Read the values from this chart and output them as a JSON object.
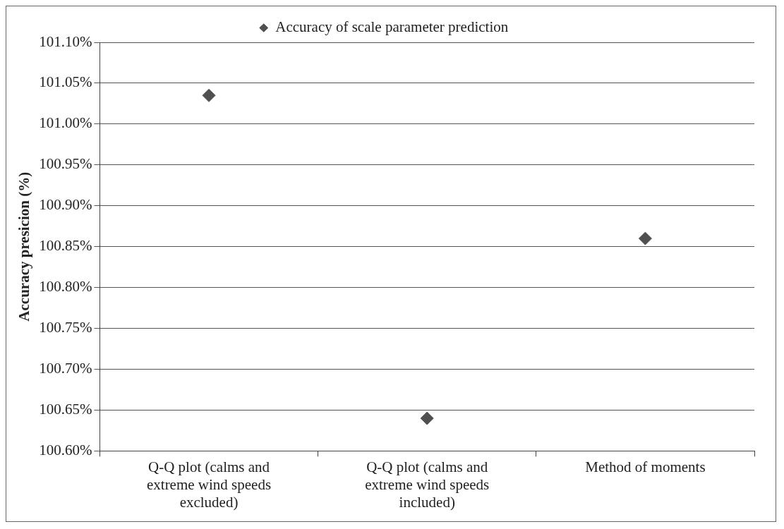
{
  "chart_data": {
    "type": "scatter",
    "ylabel": "Accuracy presicion (%)",
    "categories": [
      "Q-Q plot (calms and extreme wind speeds excluded)",
      "Q-Q plot (calms and extreme wind speeds included)",
      "Method of moments"
    ],
    "series": [
      {
        "name": "Accuracy of scale parameter prediction",
        "color": "#505050",
        "values": [
          101.035,
          100.64,
          100.86
        ]
      }
    ],
    "ylim": [
      100.6,
      101.1
    ],
    "yticks": [
      {
        "value": 100.6,
        "label": "100.60%"
      },
      {
        "value": 100.65,
        "label": "100.65%"
      },
      {
        "value": 100.7,
        "label": "100.70%"
      },
      {
        "value": 100.75,
        "label": "100.75%"
      },
      {
        "value": 100.8,
        "label": "100.80%"
      },
      {
        "value": 100.85,
        "label": "100.85%"
      },
      {
        "value": 100.9,
        "label": "100.90%"
      },
      {
        "value": 100.95,
        "label": "100.95%"
      },
      {
        "value": 101.0,
        "label": "101.00%"
      },
      {
        "value": 101.05,
        "label": "101.05%"
      },
      {
        "value": 101.1,
        "label": "101.10%"
      }
    ],
    "grid": "y",
    "legend": "top",
    "marker": "diamond"
  }
}
